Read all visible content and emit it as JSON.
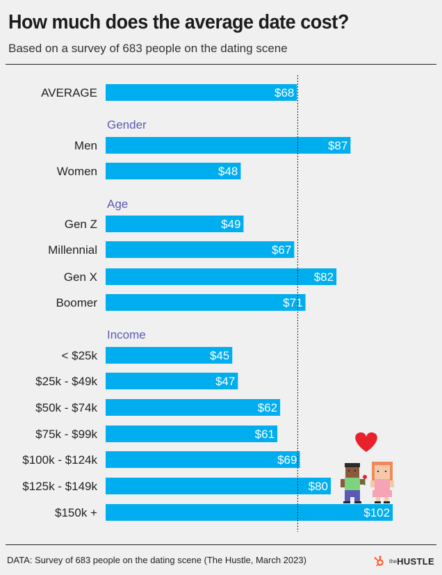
{
  "title": "How much does the average date cost?",
  "subtitle": "Based on a survey of 683 people on the dating scene",
  "source": "DATA: Survey of 683 people on the dating scene (The Hustle, March 2023)",
  "brand": {
    "prefix": "the",
    "name": "HUSTLE"
  },
  "colors": {
    "bar": "#00aeef",
    "group_label": "#5a5ab4",
    "logo": "#ff5c35",
    "heart": "#e8212b"
  },
  "chart_data": {
    "type": "bar",
    "orientation": "horizontal",
    "reference_line": {
      "label": "AVERAGE",
      "value": 68
    },
    "value_prefix": "$",
    "rows": [
      {
        "kind": "bar",
        "label": "AVERAGE",
        "value": 68,
        "display": "$68"
      },
      {
        "kind": "group",
        "label": "Gender"
      },
      {
        "kind": "bar",
        "label": "Men",
        "value": 87,
        "display": "$87"
      },
      {
        "kind": "bar",
        "label": "Women",
        "value": 48,
        "display": "$48"
      },
      {
        "kind": "group",
        "label": "Age"
      },
      {
        "kind": "bar",
        "label": "Gen Z",
        "value": 49,
        "display": "$49"
      },
      {
        "kind": "bar",
        "label": "Millennial",
        "value": 67,
        "display": "$67"
      },
      {
        "kind": "bar",
        "label": "Gen X",
        "value": 82,
        "display": "$82"
      },
      {
        "kind": "bar",
        "label": "Boomer",
        "value": 71,
        "display": "$71"
      },
      {
        "kind": "group",
        "label": "Income"
      },
      {
        "kind": "bar",
        "label": "< $25k",
        "value": 45,
        "display": "$45"
      },
      {
        "kind": "bar",
        "label": "$25k - $49k",
        "value": 47,
        "display": "$47"
      },
      {
        "kind": "bar",
        "label": "$50k - $74k",
        "value": 62,
        "display": "$62"
      },
      {
        "kind": "bar",
        "label": "$75k - $99k",
        "value": 61,
        "display": "$61"
      },
      {
        "kind": "bar",
        "label": "$100k - $124k",
        "value": 69,
        "display": "$69"
      },
      {
        "kind": "bar",
        "label": "$125k - $149k",
        "value": 80,
        "display": "$80"
      },
      {
        "kind": "bar",
        "label": "$150k +",
        "value": 102,
        "display": "$102"
      }
    ]
  }
}
